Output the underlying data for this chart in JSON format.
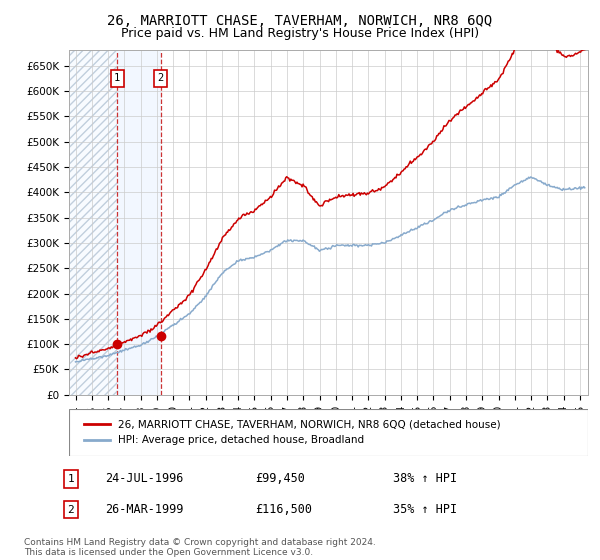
{
  "title": "26, MARRIOTT CHASE, TAVERHAM, NORWICH, NR8 6QQ",
  "subtitle": "Price paid vs. HM Land Registry's House Price Index (HPI)",
  "ylim": [
    0,
    680000
  ],
  "yticks": [
    0,
    50000,
    100000,
    150000,
    200000,
    250000,
    300000,
    350000,
    400000,
    450000,
    500000,
    550000,
    600000,
    650000
  ],
  "xlim_start": 1993.6,
  "xlim_end": 2025.5,
  "sale1_date": 1996.56,
  "sale1_price": 99450,
  "sale2_date": 1999.23,
  "sale2_price": 116500,
  "hpi_line_color": "#88aacc",
  "price_line_color": "#cc0000",
  "dot_color": "#cc0000",
  "dashed_line_color": "#cc3333",
  "background_color": "#ffffff",
  "grid_color": "#cccccc",
  "legend_label1": "26, MARRIOTT CHASE, TAVERHAM, NORWICH, NR8 6QQ (detached house)",
  "legend_label2": "HPI: Average price, detached house, Broadland",
  "table_row1": [
    "1",
    "24-JUL-1996",
    "£99,450",
    "38% ↑ HPI"
  ],
  "table_row2": [
    "2",
    "26-MAR-1999",
    "£116,500",
    "35% ↑ HPI"
  ],
  "footnote": "Contains HM Land Registry data © Crown copyright and database right 2024.\nThis data is licensed under the Open Government Licence v3.0.",
  "title_fontsize": 10,
  "subtitle_fontsize": 9,
  "tick_fontsize": 7.5,
  "figsize": [
    6.0,
    5.6
  ],
  "dpi": 100
}
